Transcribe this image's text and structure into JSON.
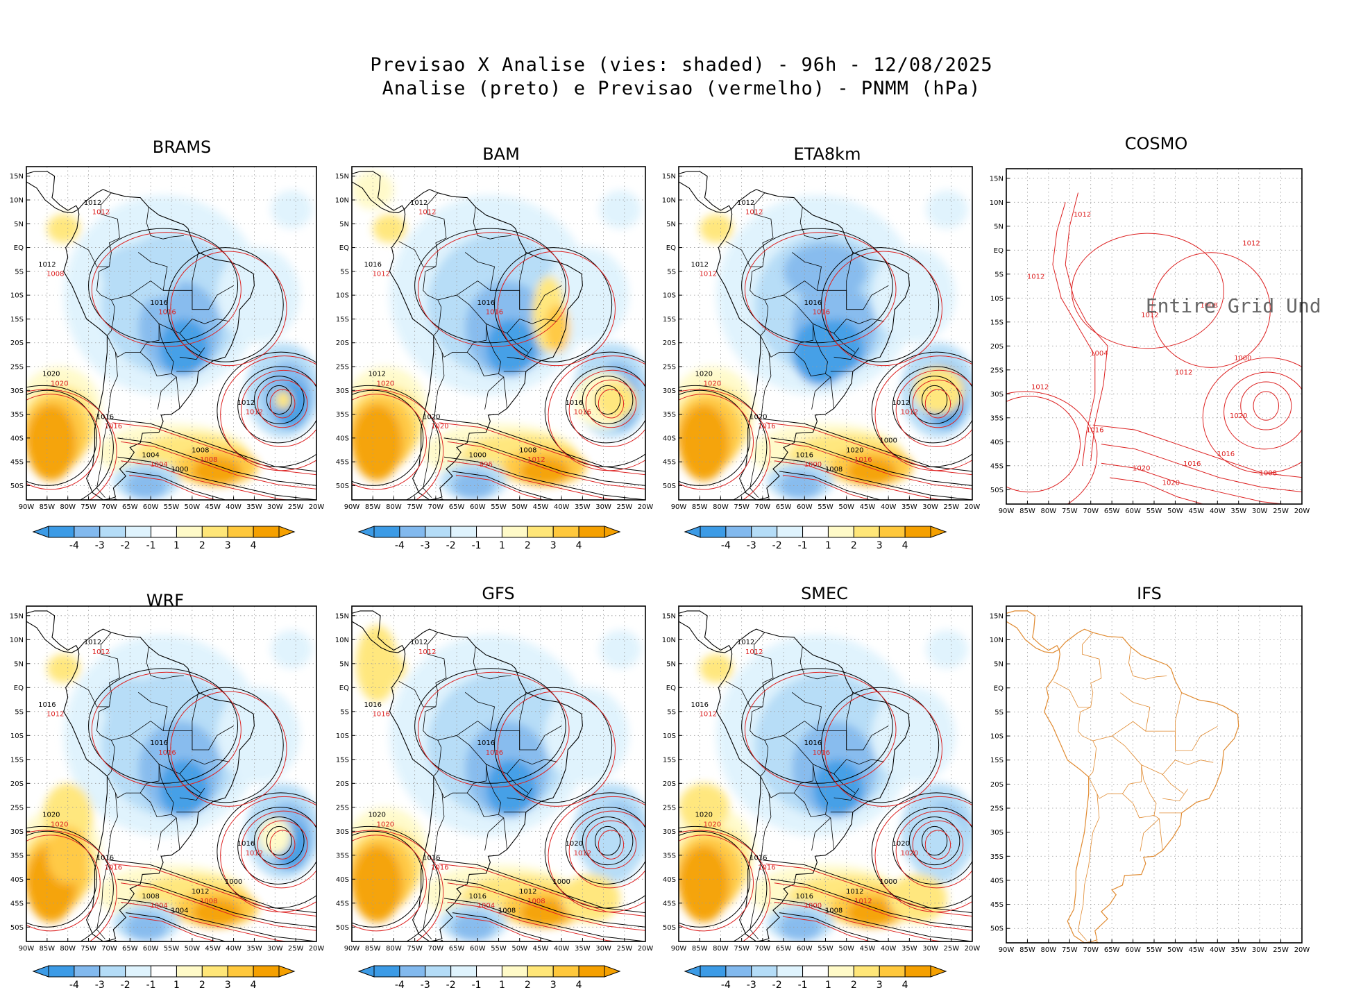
{
  "title_line1": "Previsao X Analise (vies: shaded) - 96h - 12/08/2025",
  "title_line2": "Analise (preto) e Previsao (vermelho) - PNMM (hPa)",
  "lat_labels": [
    "15N",
    "10N",
    "5N",
    "EQ",
    "5S",
    "10S",
    "15S",
    "20S",
    "25S",
    "30S",
    "35S",
    "40S",
    "45S",
    "50S"
  ],
  "lon_labels": [
    "90W",
    "85W",
    "80W",
    "75W",
    "70W",
    "65W",
    "60W",
    "55W",
    "50W",
    "45W",
    "40W",
    "35W",
    "30W",
    "25W",
    "20W"
  ],
  "colorbar_labels": [
    "-4",
    "-3",
    "-2",
    "-1",
    "1",
    "2",
    "3",
    "4"
  ],
  "colors": {
    "neg4": "#3c9be6",
    "neg3": "#82b9ee",
    "neg2": "#b4dcf7",
    "neg1": "#dff3fd",
    "zero": "#ffffff",
    "pos1": "#fffac8",
    "pos2": "#ffe678",
    "pos3": "#ffc83c",
    "pos4": "#f5a000",
    "analysis": "#000000",
    "forecast": "#dd2222",
    "ifs_coast": "#e08a30"
  },
  "panels": [
    {
      "name": "BRAMS",
      "kind": "bias",
      "labels": {
        "black": [
          "1012",
          "1012",
          "1016",
          "1020",
          "1016",
          "1012",
          "1008",
          "1004",
          "1000"
        ],
        "red": [
          "1012",
          "1008",
          "1016",
          "1020",
          "1016",
          "1012",
          "1008",
          "1004"
        ]
      }
    },
    {
      "name": "BAM",
      "kind": "bias",
      "labels": {
        "black": [
          "1012",
          "1016",
          "1016",
          "1012",
          "1020",
          "1016",
          "1008",
          "1000"
        ],
        "red": [
          "1012",
          "1012",
          "1016",
          "1020",
          "1020",
          "1016",
          "1012",
          "996"
        ]
      }
    },
    {
      "name": "ETA8km",
      "kind": "bias",
      "labels": {
        "black": [
          "1012",
          "1012",
          "1016",
          "1020",
          "1020",
          "1012",
          "1020",
          "1016",
          "1008",
          "1000"
        ],
        "red": [
          "1012",
          "1012",
          "1016",
          "1020",
          "1016",
          "1012",
          "1016",
          "1000"
        ]
      }
    },
    {
      "name": "COSMO",
      "kind": "forecast_only",
      "undefined_text": "Entire Grid Und",
      "labels": {
        "black": [],
        "red": [
          "1012",
          "1012",
          "1012",
          "1012",
          "1016",
          "1020",
          "1016",
          "1020",
          "1020",
          "1016",
          "1012",
          "1008",
          "1004",
          "1000",
          "1012",
          "1008"
        ]
      }
    },
    {
      "name": "WRF",
      "kind": "bias",
      "labels": {
        "black": [
          "1012",
          "1016",
          "1016",
          "1020",
          "1016",
          "1016",
          "1012",
          "1008",
          "1004",
          "1000"
        ],
        "red": [
          "1012",
          "1012",
          "1016",
          "1020",
          "1016",
          "1012",
          "1008",
          "1004"
        ]
      }
    },
    {
      "name": "GFS",
      "kind": "bias",
      "labels": {
        "black": [
          "1012",
          "1016",
          "1016",
          "1020",
          "1016",
          "1020",
          "1012",
          "1016",
          "1008",
          "1000"
        ],
        "red": [
          "1012",
          "1016",
          "1016",
          "1020",
          "1016",
          "1012",
          "1008",
          "1004"
        ]
      }
    },
    {
      "name": "SMEC",
      "kind": "bias",
      "labels": {
        "black": [
          "1012",
          "1016",
          "1016",
          "1020",
          "1016",
          "1020",
          "1012",
          "1016",
          "1008",
          "1000"
        ],
        "red": [
          "1012",
          "1012",
          "1016",
          "1020",
          "1016",
          "1020",
          "1012",
          "1000"
        ]
      }
    },
    {
      "name": "IFS",
      "kind": "coast_only",
      "labels": {
        "black": [],
        "red": []
      }
    }
  ]
}
